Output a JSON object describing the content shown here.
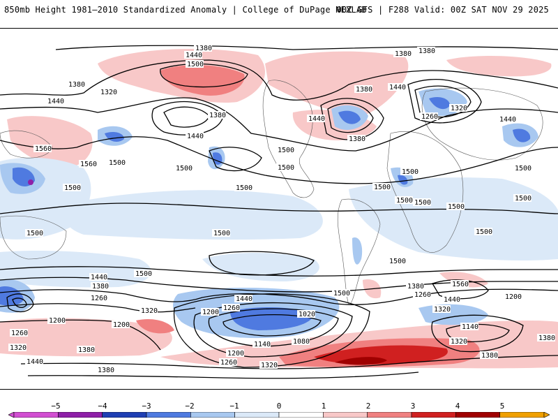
{
  "header": {
    "title_left": "850mb Height 1981–2010 Standardized Anomaly | College of DuPage NEXLAB",
    "title_right": "00Z GFS | F288 Valid: 00Z SAT NOV 29 2025"
  },
  "colorbar": {
    "ticks": [
      "−5",
      "−4",
      "−3",
      "−2",
      "−1",
      "0",
      "1",
      "2",
      "3",
      "4",
      "5"
    ],
    "colors": [
      "#d24fd2",
      "#8e1fa8",
      "#1f3fb4",
      "#4f7ae0",
      "#a8c8f0",
      "#dbe9f8",
      "#ffffff",
      "#f8c8c8",
      "#f08080",
      "#d02020",
      "#a00000",
      "#f0a000"
    ]
  },
  "contour_labels": [
    {
      "text": "1380"
    },
    {
      "text": "1440"
    },
    {
      "text": "1500"
    },
    {
      "text": "1380"
    },
    {
      "text": "1380"
    },
    {
      "text": "1320"
    },
    {
      "text": "1440"
    },
    {
      "text": "1380"
    },
    {
      "text": "1560"
    },
    {
      "text": "1560"
    },
    {
      "text": "1500"
    },
    {
      "text": "1500"
    },
    {
      "text": "1500"
    },
    {
      "text": "1500"
    },
    {
      "text": "1380"
    },
    {
      "text": "1440"
    },
    {
      "text": "1440"
    },
    {
      "text": "1380"
    },
    {
      "text": "1380"
    },
    {
      "text": "1440"
    },
    {
      "text": "1320"
    },
    {
      "text": "1260"
    },
    {
      "text": "1500"
    },
    {
      "text": "1500"
    },
    {
      "text": "1440"
    },
    {
      "text": "1500"
    },
    {
      "text": "1500"
    },
    {
      "text": "1500"
    },
    {
      "text": "1500"
    },
    {
      "text": "1500"
    },
    {
      "text": "1500"
    },
    {
      "text": "1500"
    },
    {
      "text": "1500"
    },
    {
      "text": "1500"
    },
    {
      "text": "1500"
    },
    {
      "text": "1500"
    },
    {
      "text": "1500"
    },
    {
      "text": "1500"
    },
    {
      "text": "1440"
    },
    {
      "text": "1380"
    },
    {
      "text": "1260"
    },
    {
      "text": "1200"
    },
    {
      "text": "1200"
    },
    {
      "text": "1320"
    },
    {
      "text": "1260"
    },
    {
      "text": "1320"
    },
    {
      "text": "1380"
    },
    {
      "text": "1440"
    },
    {
      "text": "1380"
    },
    {
      "text": "1440"
    },
    {
      "text": "1260"
    },
    {
      "text": "1200"
    },
    {
      "text": "1020"
    },
    {
      "text": "1080"
    },
    {
      "text": "1140"
    },
    {
      "text": "1200"
    },
    {
      "text": "1260"
    },
    {
      "text": "1320"
    },
    {
      "text": "1380"
    },
    {
      "text": "1260"
    },
    {
      "text": "1320"
    },
    {
      "text": "1440"
    },
    {
      "text": "1560"
    },
    {
      "text": "1200"
    },
    {
      "text": "1140"
    },
    {
      "text": "1320"
    },
    {
      "text": "1380"
    },
    {
      "text": "1380"
    }
  ]
}
